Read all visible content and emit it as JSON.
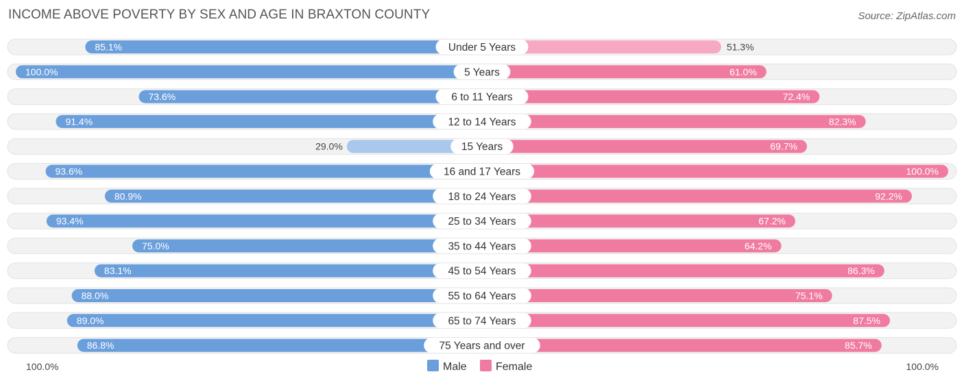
{
  "chart_data": {
    "type": "bar",
    "orientation": "horizontal-diverging",
    "title": "INCOME ABOVE POVERTY BY SEX AND AGE IN BRAXTON COUNTY",
    "source": "Source: ZipAtlas.com",
    "categories": [
      "Under 5 Years",
      "5 Years",
      "6 to 11 Years",
      "12 to 14 Years",
      "15 Years",
      "16 and 17 Years",
      "18 to 24 Years",
      "25 to 34 Years",
      "35 to 44 Years",
      "45 to 54 Years",
      "55 to 64 Years",
      "65 to 74 Years",
      "75 Years and over"
    ],
    "series": [
      {
        "name": "Male",
        "values": [
          85.1,
          100.0,
          73.6,
          91.4,
          29.0,
          93.6,
          80.9,
          93.4,
          75.0,
          83.1,
          88.0,
          89.0,
          86.8
        ],
        "labels": [
          "85.1%",
          "100.0%",
          "73.6%",
          "91.4%",
          "29.0%",
          "93.6%",
          "80.9%",
          "93.4%",
          "75.0%",
          "83.1%",
          "88.0%",
          "89.0%",
          "86.8%"
        ]
      },
      {
        "name": "Female",
        "values": [
          51.3,
          61.0,
          72.4,
          82.3,
          69.7,
          100.0,
          92.2,
          67.2,
          64.2,
          86.3,
          75.1,
          87.5,
          85.7
        ],
        "labels": [
          "51.3%",
          "61.0%",
          "72.4%",
          "82.3%",
          "69.7%",
          "100.0%",
          "92.2%",
          "67.2%",
          "64.2%",
          "86.3%",
          "75.1%",
          "87.5%",
          "85.7%"
        ]
      }
    ],
    "axis": {
      "left_label": "100.0%",
      "right_label": "100.0%",
      "max": 100
    },
    "legend": {
      "position": "bottom-center"
    },
    "colors": {
      "male_dark": "#6a9fdc",
      "male_light": "#a9c8ec",
      "female_dark": "#f07ba0",
      "female_light": "#f6a9c1"
    }
  }
}
